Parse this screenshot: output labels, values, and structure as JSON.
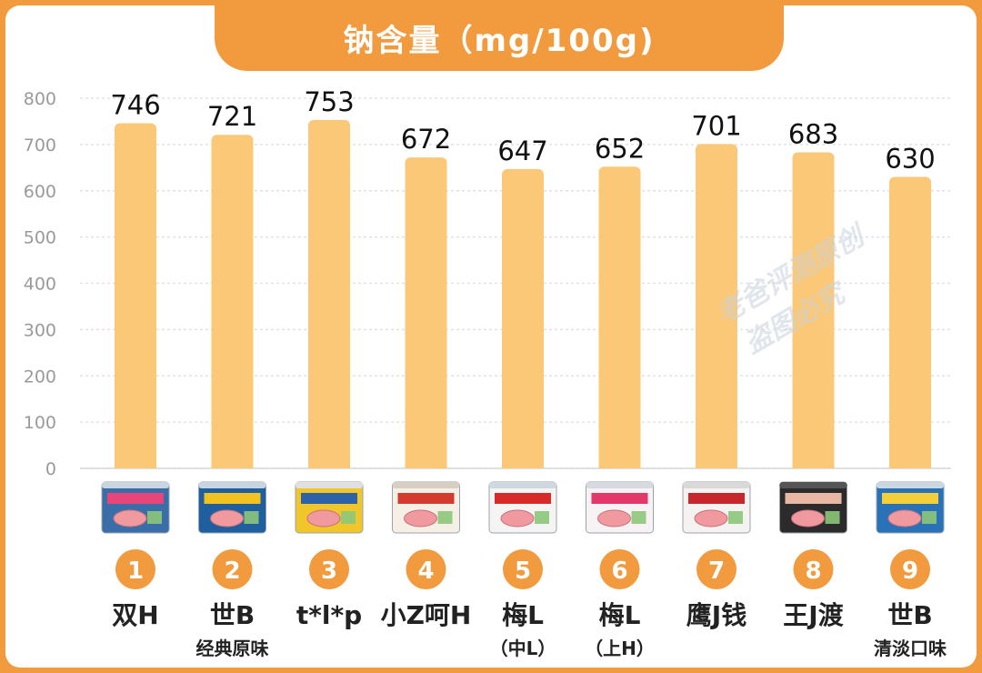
{
  "title": "钠含量（mg/100g)",
  "watermark": [
    "老爸评测原创",
    "盗图必究"
  ],
  "colors": {
    "bar": "#fbc878",
    "accent": "#f19a3e",
    "badge": "#f19a3e",
    "grid": "#e2e2e2"
  },
  "chart_data": {
    "type": "bar",
    "title": "钠含量（mg/100g)",
    "ylim": [
      0,
      800
    ],
    "yticks": [
      "0",
      "100",
      "200",
      "300",
      "400",
      "500",
      "600",
      "700",
      "800"
    ],
    "grid": true,
    "items": [
      {
        "rank": "1",
        "name": "双H",
        "sub": "",
        "value": 746,
        "value_label": "746",
        "can": "product-can-blue-pink"
      },
      {
        "rank": "2",
        "name": "世B",
        "sub": "经典原味",
        "value": 721,
        "value_label": "721",
        "can": "product-can-blue-yellow"
      },
      {
        "rank": "3",
        "name": "t*l*p",
        "sub": "",
        "value": 753,
        "value_label": "753",
        "can": "product-can-yellow"
      },
      {
        "rank": "4",
        "name": "小Z呵H",
        "sub": "",
        "value": 672,
        "value_label": "672",
        "can": "product-can-white-round"
      },
      {
        "rank": "5",
        "name": "梅L",
        "sub": "（中L）",
        "value": 647,
        "value_label": "647",
        "can": "product-can-white-red"
      },
      {
        "rank": "6",
        "name": "梅L",
        "sub": "（上H）",
        "value": 652,
        "value_label": "652",
        "can": "product-can-white-pink"
      },
      {
        "rank": "7",
        "name": "鹰J钱",
        "sub": "",
        "value": 701,
        "value_label": "701",
        "can": "product-can-white-red-flat"
      },
      {
        "rank": "8",
        "name": "王J渡",
        "sub": "",
        "value": 683,
        "value_label": "683",
        "can": "product-box-black"
      },
      {
        "rank": "9",
        "name": "世B",
        "sub": "清淡口味",
        "value": 630,
        "value_label": "630",
        "can": "product-can-blue-yellow-light"
      }
    ]
  }
}
